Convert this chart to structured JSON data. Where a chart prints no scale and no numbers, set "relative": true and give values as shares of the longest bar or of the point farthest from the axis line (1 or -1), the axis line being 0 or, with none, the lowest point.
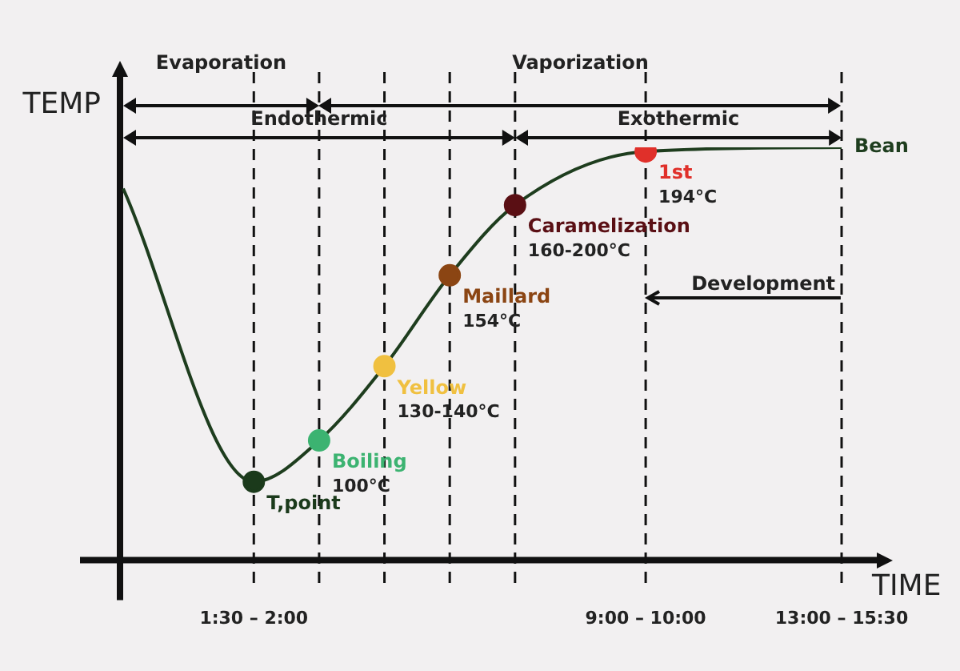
{
  "chart_data": {
    "type": "line",
    "relative": true,
    "xlabel": "TIME",
    "ylabel": "TEMP",
    "categories": [
      null,
      null,
      "1:30 – 2:00",
      null,
      null,
      null,
      null,
      null,
      "9:00 – 10:00",
      null,
      null,
      "13:00 – 15:30"
    ],
    "series": [
      {
        "name": "Bean",
        "color": "#1e3d1e",
        "values": [
          0.9,
          null,
          0.19,
          0.29,
          0.47,
          0.69,
          0.86,
          null,
          0.99,
          null,
          null,
          1.0
        ],
        "colors": [
          null,
          null,
          "#1b3a1b",
          "#3cb371",
          "#f0c040",
          "#8b4513",
          "#5a0f14",
          null,
          "#e0302a",
          null,
          null,
          null
        ]
      }
    ],
    "grid": "x",
    "line_style": "solid",
    "marker": "circle",
    "annotations": [
      "Evaporation",
      "Vaporization",
      "Endothermic",
      "Exothermic",
      "Development",
      "T,point",
      "Boiling\n100°C",
      "Yellow\n130-140°C",
      "Maillard\n154°C",
      "Caramelization\n160-200°C",
      "1st\n194°C"
    ]
  }
}
